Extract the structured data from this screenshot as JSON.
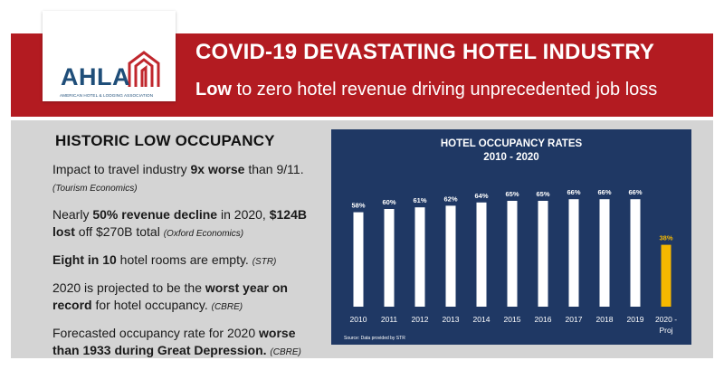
{
  "banner": {
    "title": "COVID-19 DEVASTATING HOTEL INDUSTRY",
    "subtitle_bold": "Low",
    "subtitle_rest": " to zero hotel revenue driving unprecedented job loss"
  },
  "logo": {
    "text": "AHLA",
    "tagline": "AMERICAN HOTEL & LODGING ASSOCIATION"
  },
  "left": {
    "heading": "HISTORIC LOW OCCUPANCY",
    "items": [
      {
        "parts": [
          {
            "t": "Impact to travel industry "
          },
          {
            "t": "9x worse",
            "b": true
          },
          {
            "t": " than 9/11. "
          },
          {
            "t": "(Tourism Economics)",
            "s": true
          }
        ]
      },
      {
        "parts": [
          {
            "t": "Nearly "
          },
          {
            "t": "50% revenue decline",
            "b": true
          },
          {
            "t": " in 2020, "
          },
          {
            "t": "$124B lost",
            "b": true
          },
          {
            "t": " off $270B total "
          },
          {
            "t": "(Oxford Economics)",
            "s": true
          }
        ]
      },
      {
        "parts": [
          {
            "t": "Eight in 10",
            "b": true
          },
          {
            "t": " hotel rooms are empty. "
          },
          {
            "t": "(STR)",
            "s": true
          }
        ]
      },
      {
        "parts": [
          {
            "t": "2020 is projected to be the "
          },
          {
            "t": "worst year on record",
            "b": true
          },
          {
            "t": " for hotel occupancy. "
          },
          {
            "t": "(CBRE)",
            "s": true
          }
        ]
      },
      {
        "parts": [
          {
            "t": "Forecasted occupancy rate for 2020 "
          },
          {
            "t": "worse than 1933 during Great Depression.",
            "b": true
          },
          {
            "t": " "
          },
          {
            "t": "(CBRE)",
            "s": true
          }
        ]
      }
    ]
  },
  "chart_data": {
    "type": "bar",
    "title": "HOTEL OCCUPANCY RATES",
    "subtitle": "2010 - 2020",
    "categories": [
      "2010",
      "2011",
      "2012",
      "2013",
      "2014",
      "2015",
      "2016",
      "2017",
      "2018",
      "2019",
      "2020 - Proj"
    ],
    "values": [
      58,
      60,
      61,
      62,
      64,
      65,
      65,
      66,
      66,
      66,
      38
    ],
    "data_labels": [
      "58%",
      "60%",
      "61%",
      "62%",
      "64%",
      "65%",
      "65%",
      "66%",
      "66%",
      "66%",
      "38%"
    ],
    "ylim": [
      0,
      80
    ],
    "grid": false,
    "source": "Source: Data provided by STR",
    "colors": {
      "background": "#1f3864",
      "bar": "#ffffff",
      "highlight_bar": "#f5b800",
      "highlight_index": 10,
      "text": "#ffffff",
      "highlight_text": "#f5b800"
    }
  },
  "colors": {
    "banner": "#b31b21",
    "panel": "#d4d4d4",
    "logo_blue": "#1f4e79"
  }
}
